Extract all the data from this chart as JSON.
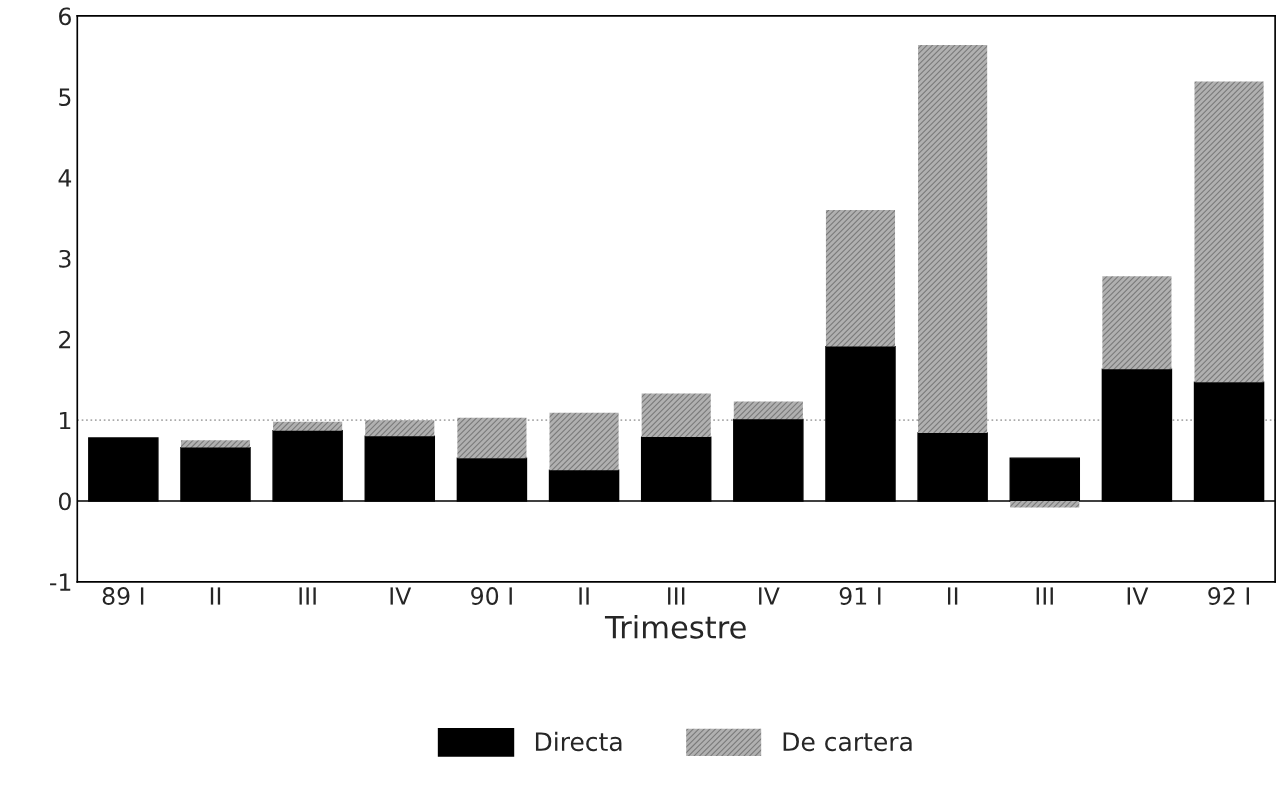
{
  "chart_data": {
    "type": "bar",
    "xlabel": "Trimestre",
    "categories": [
      "89 I",
      "II",
      "III",
      "IV",
      "90 I",
      "II",
      "III",
      "IV",
      "91 I",
      "II",
      "III",
      "IV",
      "92 I"
    ],
    "stacked": true,
    "series": [
      {
        "name": "Directa",
        "color": "#000000",
        "values": [
          0.78,
          0.66,
          0.87,
          0.8,
          0.53,
          0.38,
          0.79,
          1.01,
          1.91,
          0.84,
          0.53,
          1.63,
          1.47
        ]
      },
      {
        "name": "De cartera",
        "color": "#b0b0b0",
        "values": [
          null,
          0.09,
          0.11,
          0.2,
          0.5,
          0.71,
          0.54,
          0.22,
          1.69,
          4.8,
          -0.08,
          1.15,
          3.72
        ]
      }
    ],
    "ylim": [
      -1,
      6
    ],
    "yticks": [
      -1,
      0,
      1,
      2,
      3,
      4,
      5,
      6
    ],
    "ref_lines": [
      {
        "axis": "y",
        "value": 0,
        "color": "#000000",
        "line_style": "solid"
      },
      {
        "axis": "y",
        "value": 1,
        "color": "#aaaaaa",
        "line_style": "dotted"
      }
    ],
    "legend": "bottom",
    "grid": false
  }
}
